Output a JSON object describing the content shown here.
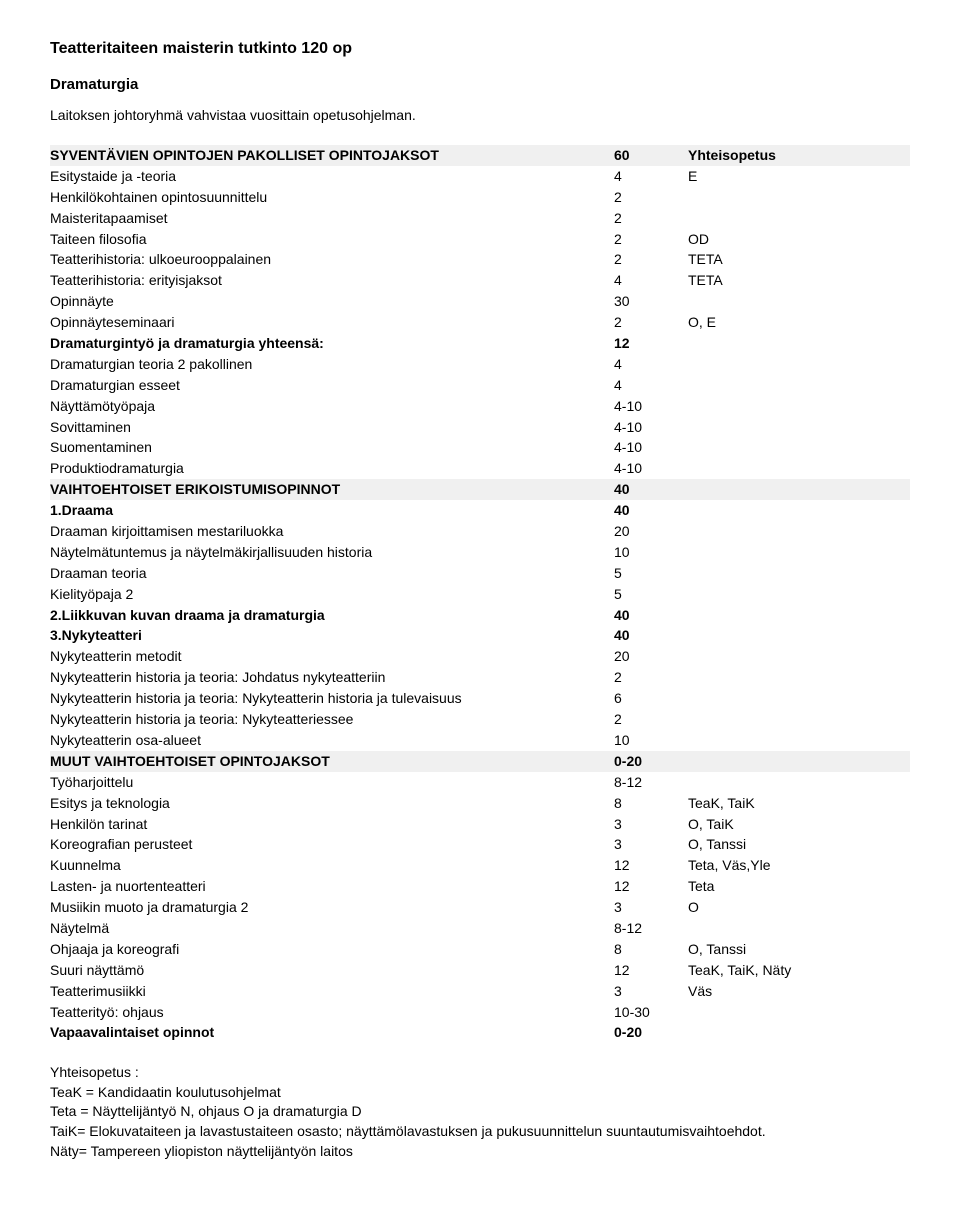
{
  "title": "Teatteritaiteen maisterin tutkinto 120 op",
  "subtitle": "Dramaturgia",
  "intro": "Laitoksen johtoryhmä vahvistaa vuosittain opetusohjelman.",
  "sections": [
    {
      "header": {
        "label": "SYVENTÄVIEN OPINTOJEN PAKOLLISET  OPINTOJAKSOT",
        "credits": "60",
        "note": "Yhteisopetus"
      },
      "rows": [
        {
          "label": "Esitystaide ja -teoria",
          "credits": "4",
          "note": "E",
          "bold": false
        },
        {
          "label": "Henkilökohtainen opintosuunnittelu",
          "credits": "2",
          "note": "",
          "bold": false
        },
        {
          "label": "Maisteritapaamiset",
          "credits": "2",
          "note": "",
          "bold": false
        },
        {
          "label": "Taiteen filosofia",
          "credits": "2",
          "note": "OD",
          "bold": false
        },
        {
          "label": "Teatterihistoria: ulkoeurooppalainen",
          "credits": "2",
          "note": "TETA",
          "bold": false
        },
        {
          "label": "Teatterihistoria: erityisjaksot",
          "credits": "4",
          "note": "TETA",
          "bold": false
        },
        {
          "label": "Opinnäyte",
          "credits": "30",
          "note": "",
          "bold": false
        },
        {
          "label": "Opinnäyteseminaari",
          "credits": "2",
          "note": "O, E",
          "bold": false
        },
        {
          "label": "Dramaturgintyö ja dramaturgia yhteensä:",
          "credits": "12",
          "note": "",
          "bold": true
        },
        {
          "label": "Dramaturgian teoria 2 pakollinen",
          "credits": "4",
          "note": "",
          "bold": false
        },
        {
          "label": "Dramaturgian esseet",
          "credits": "4",
          "note": "",
          "bold": false
        },
        {
          "label": "Näyttämötyöpaja",
          "credits": "4-10",
          "note": "",
          "bold": false
        },
        {
          "label": "Sovittaminen",
          "credits": "4-10",
          "note": "",
          "bold": false
        },
        {
          "label": "Suomentaminen",
          "credits": "4-10",
          "note": "",
          "bold": false
        },
        {
          "label": "Produktiodramaturgia",
          "credits": "4-10",
          "note": "",
          "bold": false
        }
      ]
    },
    {
      "header": {
        "label": "VAIHTOEHTOISET ERIKOISTUMISOPINNOT",
        "credits": "40",
        "note": ""
      },
      "rows": [
        {
          "label": "1.Draama",
          "credits": "40",
          "note": "",
          "bold": true
        },
        {
          "label": "Draaman kirjoittamisen mestariluokka",
          "credits": "20",
          "note": "",
          "bold": false
        },
        {
          "label": "Näytelmätuntemus ja näytelmäkirjallisuuden historia",
          "credits": "10",
          "note": "",
          "bold": false
        },
        {
          "label": "Draaman teoria",
          "credits": "5",
          "note": "",
          "bold": false
        },
        {
          "label": "Kielityöpaja 2",
          "credits": "5",
          "note": "",
          "bold": false
        },
        {
          "label": "2.Liikkuvan kuvan draama ja dramaturgia",
          "credits": "40",
          "note": "",
          "bold": true
        },
        {
          "label": "3.Nykyteatteri",
          "credits": "40",
          "note": "",
          "bold": true
        },
        {
          "label": "Nykyteatterin metodit",
          "credits": "20",
          "note": "",
          "bold": false
        },
        {
          "label": "Nykyteatterin historia ja teoria: Johdatus nykyteatteriin",
          "credits": "2",
          "note": "",
          "bold": false
        },
        {
          "label": "Nykyteatterin historia ja teoria: Nykyteatterin historia ja  tulevaisuus",
          "credits": "6",
          "note": "",
          "bold": false
        },
        {
          "label": "Nykyteatterin historia ja teoria: Nykyteatteriessee",
          "credits": "2",
          "note": "",
          "bold": false
        },
        {
          "label": "Nykyteatterin osa-alueet",
          "credits": "10",
          "note": "",
          "bold": false
        }
      ]
    },
    {
      "header": {
        "label": "MUUT VAIHTOEHTOISET OPINTOJAKSOT",
        "credits": "0-20",
        "note": ""
      },
      "rows": [
        {
          "label": "Työharjoittelu",
          "credits": "8-12",
          "note": "",
          "bold": false
        },
        {
          "label": "Esitys ja teknologia",
          "credits": "8",
          "note": "TeaK, TaiK",
          "bold": false
        },
        {
          "label": "Henkilön tarinat",
          "credits": "3",
          "note": "O, TaiK",
          "bold": false
        },
        {
          "label": "Koreografian perusteet",
          "credits": "3",
          "note": "O, Tanssi",
          "bold": false
        },
        {
          "label": "Kuunnelma",
          "credits": "12",
          "note": "Teta, Väs,Yle",
          "bold": false
        },
        {
          "label": "Lasten- ja nuortenteatteri",
          "credits": "12",
          "note": "Teta",
          "bold": false
        },
        {
          "label": "Musiikin muoto ja dramaturgia 2",
          "credits": "3",
          "note": "O",
          "bold": false
        },
        {
          "label": "Näytelmä",
          "credits": "8-12",
          "note": "",
          "bold": false
        },
        {
          "label": "Ohjaaja ja koreografi",
          "credits": "8",
          "note": "O, Tanssi",
          "bold": false
        },
        {
          "label": "Suuri näyttämö",
          "credits": "12",
          "note": "TeaK, TaiK, Näty",
          "bold": false
        },
        {
          "label": "Teatterimusiikki",
          "credits": "3",
          "note": "Väs",
          "bold": false
        },
        {
          "label": "Teatterityö: ohjaus",
          "credits": "10-30",
          "note": "",
          "bold": false
        },
        {
          "label": "Vapaavalintaiset opinnot",
          "credits": "0-20",
          "note": "",
          "bold": true
        }
      ]
    }
  ],
  "footer": {
    "heading": "Yhteisopetus :",
    "lines": [
      "TeaK = Kandidaatin koulutusohjelmat",
      "Teta = Näyttelijäntyö N, ohjaus O ja dramaturgia D",
      "TaiK= Elokuvataiteen ja lavastustaiteen osasto; näyttämölavastuksen ja pukusuunnittelun suuntautumisvaihtoehdot.",
      "Näty= Tampereen yliopiston näyttelijäntyön laitos"
    ]
  }
}
